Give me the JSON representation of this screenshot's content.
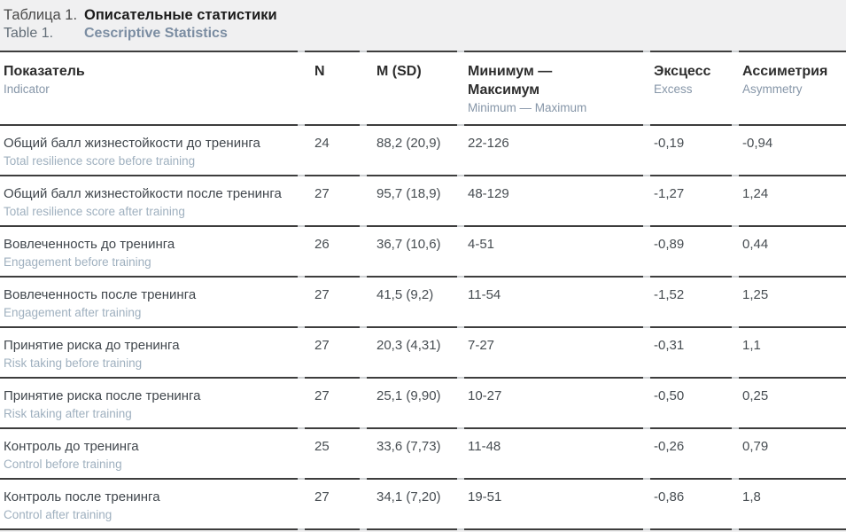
{
  "caption": {
    "label_ru": "Таблица 1.",
    "title_ru": "Описательные статистики",
    "label_en": "Table 1.",
    "title_en": "Cescriptive Statistics"
  },
  "table": {
    "columns": {
      "indicator": {
        "ru": "Показатель",
        "en": "Indicator"
      },
      "n": {
        "ru": "N"
      },
      "m_sd": {
        "ru": "M (SD)"
      },
      "min_max": {
        "ru": "Минимум —\nМаксимум",
        "en": "Minimum — Maximum"
      },
      "excess": {
        "ru": "Эксцесс",
        "en": "Excess"
      },
      "asymmetry": {
        "ru": "Ассиметрия",
        "en": "Asymmetry"
      }
    },
    "rows": [
      {
        "ru": "Общий балл жизнестойкости до тренинга",
        "en": "Total resilience score before training",
        "n": "24",
        "m_sd": "88,2 (20,9)",
        "min_max": "22-126",
        "excess": "-0,19",
        "asymmetry": "-0,94"
      },
      {
        "ru": "Общий балл жизнестойкости после тренинга",
        "en": "Total resilience score after training",
        "n": "27",
        "m_sd": "95,7 (18,9)",
        "min_max": "48-129",
        "excess": "-1,27",
        "asymmetry": "1,24"
      },
      {
        "ru": "Вовлеченность до тренинга",
        "en": "Engagement before training",
        "n": "26",
        "m_sd": "36,7 (10,6)",
        "min_max": "4-51",
        "excess": "-0,89",
        "asymmetry": "0,44"
      },
      {
        "ru": "Вовлеченность после тренинга",
        "en": "Engagement after training",
        "n": "27",
        "m_sd": "41,5 (9,2)",
        "min_max": "11-54",
        "excess": "-1,52",
        "asymmetry": "1,25"
      },
      {
        "ru": "Принятие риска до тренинга",
        "en": "Risk taking before training",
        "n": "27",
        "m_sd": "20,3 (4,31)",
        "min_max": "7-27",
        "excess": "-0,31",
        "asymmetry": "1,1"
      },
      {
        "ru": "Принятие риска после тренинга",
        "en": "Risk taking after training",
        "n": "27",
        "m_sd": "25,1 (9,90)",
        "min_max": "10-27",
        "excess": "-0,50",
        "asymmetry": "0,25"
      },
      {
        "ru": "Контроль до тренинга",
        "en": "Control before training",
        "n": "25",
        "m_sd": "33,6 (7,73)",
        "min_max": "11-48",
        "excess": "-0,26",
        "asymmetry": "0,79"
      },
      {
        "ru": "Контроль после тренинга",
        "en": "Control after training",
        "n": "27",
        "m_sd": "34,1 (7,20)",
        "min_max": "19-51",
        "excess": "-0,86",
        "asymmetry": "1,8"
      }
    ]
  },
  "colors": {
    "page_background": "#f0f0f1",
    "table_background": "#ffffff",
    "border_dark": "#3d3d3d",
    "border_gap": "#cfd2d4",
    "accent_bluegray": "#7b8da2",
    "sublabel_bluegray": "#9fb0bf"
  }
}
